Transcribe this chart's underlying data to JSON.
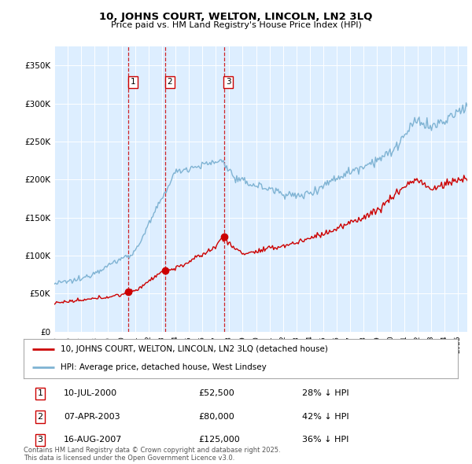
{
  "title": "10, JOHNS COURT, WELTON, LINCOLN, LN2 3LQ",
  "subtitle": "Price paid vs. HM Land Registry's House Price Index (HPI)",
  "legend_line1": "10, JOHNS COURT, WELTON, LINCOLN, LN2 3LQ (detached house)",
  "legend_line2": "HPI: Average price, detached house, West Lindsey",
  "footer": "Contains HM Land Registry data © Crown copyright and database right 2025.\nThis data is licensed under the Open Government Licence v3.0.",
  "sale_color": "#cc0000",
  "hpi_color": "#7fb3d3",
  "background_color": "#ddeeff",
  "plot_bg_color": "#ddeeff",
  "ylim": [
    0,
    375000
  ],
  "yticks": [
    0,
    50000,
    100000,
    150000,
    200000,
    250000,
    300000,
    350000
  ],
  "sales": [
    {
      "date_num": 2000.52,
      "price": 52500,
      "label": "1",
      "date_str": "10-JUL-2000",
      "price_str": "£52,500",
      "pct": "28% ↓ HPI"
    },
    {
      "date_num": 2003.27,
      "price": 80000,
      "label": "2",
      "date_str": "07-APR-2003",
      "price_str": "£80,000",
      "pct": "42% ↓ HPI"
    },
    {
      "date_num": 2007.62,
      "price": 125000,
      "label": "3",
      "date_str": "16-AUG-2007",
      "price_str": "£125,000",
      "pct": "36% ↓ HPI"
    }
  ],
  "xlim_start": 1995.0,
  "xlim_end": 2025.7,
  "xtick_years": [
    1995,
    1996,
    1997,
    1998,
    1999,
    2000,
    2001,
    2002,
    2003,
    2004,
    2005,
    2006,
    2007,
    2008,
    2009,
    2010,
    2011,
    2012,
    2013,
    2014,
    2015,
    2016,
    2017,
    2018,
    2019,
    2020,
    2021,
    2022,
    2023,
    2024,
    2025
  ]
}
